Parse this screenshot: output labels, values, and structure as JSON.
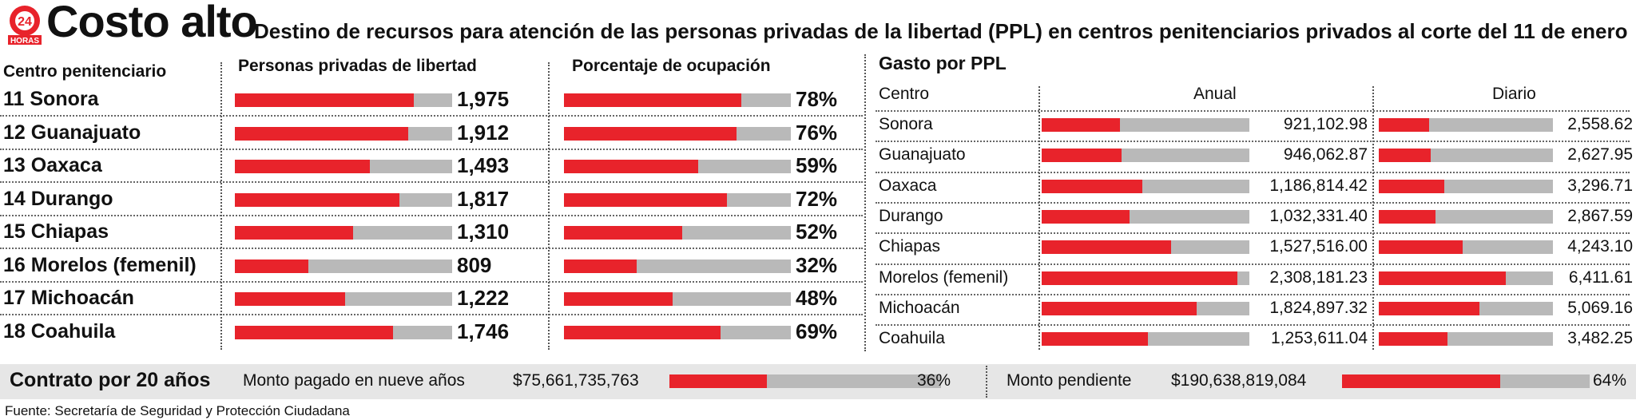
{
  "header": {
    "logo_text": "24 HORAS",
    "title": "Costo alto",
    "subtitle": "Destino de recursos para atención de las personas privadas de la libertad (PPL) en centros penitenciarios privados al corte del 11 de enero"
  },
  "colors": {
    "fill": "#e8232b",
    "track": "#b9b9b9",
    "band": "#e6e6e6"
  },
  "chart_data": [
    {
      "type": "bar",
      "title": "Personas privadas de libertad",
      "xlabel": "Centro penitenciario",
      "categories": [
        "11 Sonora",
        "12 Guanajuato",
        "13 Oaxaca",
        "14 Durango",
        "15 Chiapas",
        "16 Morelos (femenil)",
        "17 Michoacán",
        "18 Coahuila"
      ],
      "values": [
        1975,
        1912,
        1493,
        1817,
        1310,
        809,
        1222,
        1746
      ],
      "labels": [
        "1,975",
        "1,912",
        "1,493",
        "1,817",
        "1,310",
        "809",
        "1,222",
        "1,746"
      ],
      "xlim": [
        0,
        2400
      ]
    },
    {
      "type": "bar",
      "title": "Porcentaje de ocupación",
      "categories": [
        "11 Sonora",
        "12 Guanajuato",
        "13 Oaxaca",
        "14 Durango",
        "15 Chiapas",
        "16 Morelos (femenil)",
        "17 Michoacán",
        "18 Coahuila"
      ],
      "values": [
        78,
        76,
        59,
        72,
        52,
        32,
        48,
        69
      ],
      "labels": [
        "78%",
        "76%",
        "59%",
        "72%",
        "52%",
        "32%",
        "48%",
        "69%"
      ],
      "xlim": [
        0,
        100
      ]
    },
    {
      "type": "bar",
      "title": "Gasto por PPL",
      "xlabel": "Centro",
      "series_name": "Anual",
      "categories": [
        "Sonora",
        "Guanajuato",
        "Oaxaca",
        "Durango",
        "Chiapas",
        "Morelos (femenil)",
        "Michoacán",
        "Coahuila"
      ],
      "values": [
        921102.98,
        946062.87,
        1186814.42,
        1032331.4,
        1527516.0,
        2308181.23,
        1824897.32,
        1253611.04
      ],
      "labels": [
        "921,102.98",
        "946,062.87",
        "1,186,814.42",
        "1,032,331.40",
        "1,527,516.00",
        "2,308,181.23",
        "1,824,897.32",
        "1,253,611.04"
      ],
      "xlim": [
        0,
        2450000
      ]
    },
    {
      "type": "bar",
      "series_name": "Diario",
      "categories": [
        "Sonora",
        "Guanajuato",
        "Oaxaca",
        "Durango",
        "Chiapas",
        "Morelos (femenil)",
        "Michoacán",
        "Coahuila"
      ],
      "values": [
        2558.62,
        2627.95,
        3296.71,
        2867.59,
        4243.1,
        6411.61,
        5069.16,
        3482.25
      ],
      "labels": [
        "2,558.62",
        "2,627.95",
        "3,296.71",
        "2,867.59",
        "4,243.10",
        "6,411.61",
        "5,069.16",
        "3,482.25"
      ],
      "xlim": [
        0,
        8800
      ]
    },
    {
      "type": "bar",
      "title": "Contrato por 20 años",
      "categories": [
        "Monto pagado en nueve años",
        "Monto pendiente"
      ],
      "amounts": [
        "$75,661,735,763",
        "$190,638,819,084"
      ],
      "values": [
        36,
        64
      ],
      "labels": [
        "36%",
        "64%"
      ],
      "xlim": [
        0,
        100
      ]
    }
  ],
  "footer": {
    "source": "Fuente: Secretaría de Seguridad y Protección Ciudadana"
  }
}
